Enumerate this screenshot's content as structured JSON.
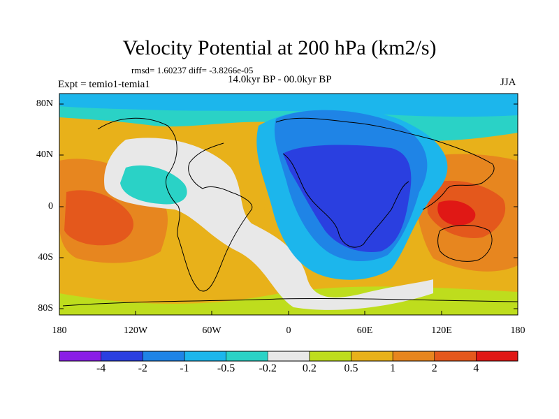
{
  "title": "Velocity Potential at 200 hPa (km2/s)",
  "stats": "rmsd= 1.60237 diff= -3.8266e-05",
  "period": "14.0kyr BP - 00.0kyr BP",
  "experiment": "Expt = temio1-temia1",
  "season": "JJA",
  "map": {
    "projection": "cylindrical-equidistant",
    "lat_labels": [
      "80N",
      "40N",
      "0",
      "40S",
      "80S"
    ],
    "lon_labels": [
      "180",
      "120W",
      "60W",
      "0",
      "60E",
      "120E",
      "180"
    ],
    "land_outline_color": "#000000"
  },
  "colorbar": {
    "levels": [
      "-4",
      "-2",
      "-1",
      "-0.5",
      "-0.2",
      "0.2",
      "0.5",
      "1",
      "2",
      "4"
    ],
    "colors": [
      "#8a1ee6",
      "#2a3fe0",
      "#1f84e6",
      "#1cb6ec",
      "#2ad2c6",
      "#e8e8e8",
      "#bedd1d",
      "#e8b11a",
      "#e7861f",
      "#e4581c",
      "#e01815"
    ]
  }
}
